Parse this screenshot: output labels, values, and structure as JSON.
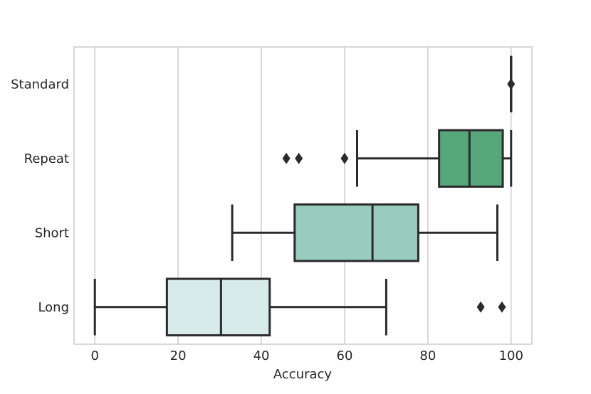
{
  "chart_data": {
    "type": "box",
    "orientation": "horizontal",
    "xlabel": "Accuracy",
    "ylabel": "",
    "xlim": [
      -5,
      105
    ],
    "xticks": [
      0,
      20,
      40,
      60,
      80,
      100
    ],
    "grid": "vertical",
    "categories": [
      "Standard",
      "Repeat",
      "Short",
      "Long"
    ],
    "boxes": [
      {
        "category": "Standard",
        "color": "#2ca25f",
        "whisker_low": 100,
        "q1": 100,
        "median": 100,
        "q3": 100,
        "whisker_high": 100,
        "outliers": [
          100
        ]
      },
      {
        "category": "Repeat",
        "color": "#56a679",
        "whisker_low": 63,
        "q1": 82.7,
        "median": 90,
        "q3": 98,
        "whisker_high": 100,
        "outliers": [
          46,
          49,
          60
        ]
      },
      {
        "category": "Short",
        "color": "#98cdbd",
        "whisker_low": 33,
        "q1": 48,
        "median": 66.7,
        "q3": 77.7,
        "whisker_high": 96.7,
        "outliers": []
      },
      {
        "category": "Long",
        "color": "#d8ebeb",
        "whisker_low": 0,
        "q1": 17.3,
        "median": 30.3,
        "q3": 42,
        "whisker_high": 70,
        "outliers": [
          92.7,
          97.8
        ]
      }
    ]
  }
}
